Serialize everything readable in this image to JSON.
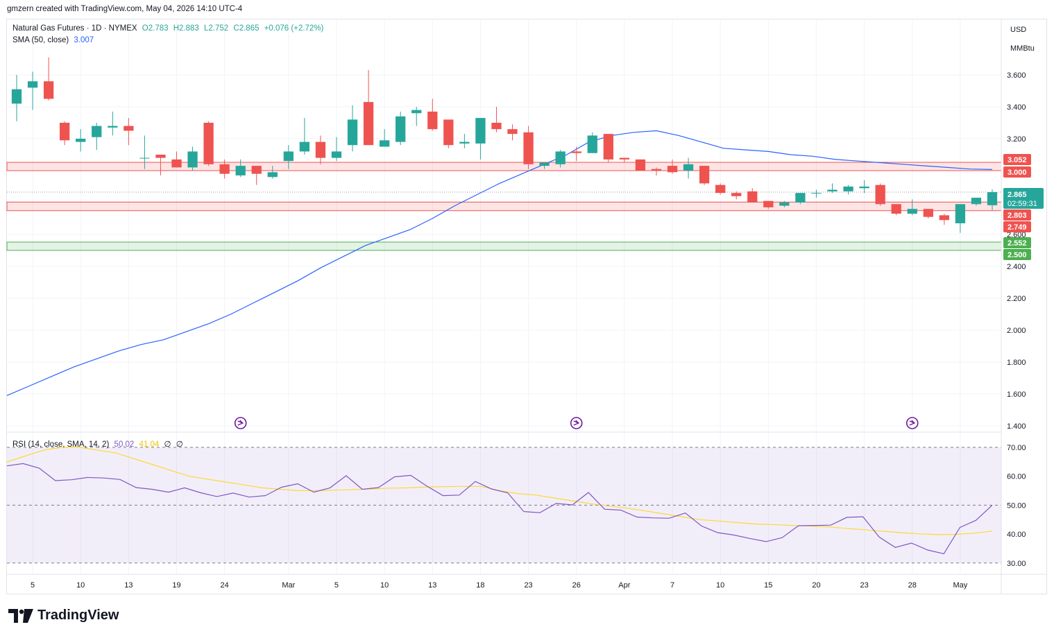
{
  "credit": "gmzern created with TradingView.com, May 04, 2026 14:10 UTC-4",
  "legend": {
    "symbol": "Natural Gas Futures · 1D · NYMEX",
    "open": "O2.783",
    "high": "H2.883",
    "low": "L2.752",
    "close": "C2.865",
    "change": "+0.076 (+2.72%)",
    "sma_label": "SMA (50, close)",
    "sma_value": "3.007",
    "rsi_label": "RSI (14, close, SMA, 14, 2)",
    "rsi_value": "50.02",
    "rsi_ma_value": "41.04",
    "rsi_extra1": "∅",
    "rsi_extra2": "∅"
  },
  "price_scale": {
    "unit": "USD",
    "unit2": "MMBtu",
    "ticks": [
      "3.600",
      "3.400",
      "3.200",
      "3.000",
      "2.800",
      "2.600",
      "2.400",
      "2.200",
      "2.000",
      "1.800",
      "1.600",
      "1.400"
    ],
    "last_price": "2.865",
    "countdown": "02:59:31"
  },
  "levels": [
    {
      "value": 3.052,
      "label": "3.052",
      "kind": "resistance"
    },
    {
      "value": 3.0,
      "label": "3.000",
      "kind": "resistance"
    },
    {
      "value": 2.803,
      "label": "2.803",
      "kind": "resistance"
    },
    {
      "value": 2.749,
      "label": "2.749",
      "kind": "resistance"
    },
    {
      "value": 2.552,
      "label": "2.552",
      "kind": "support"
    },
    {
      "value": 2.5,
      "label": "2.500",
      "kind": "support"
    }
  ],
  "rsi_scale": {
    "ticks": [
      "70.00",
      "60.00",
      "50.00",
      "40.00",
      "30.00"
    ]
  },
  "time_axis": [
    "5",
    "10",
    "13",
    "19",
    "24",
    "Mar",
    "5",
    "10",
    "13",
    "18",
    "23",
    "26",
    "Apr",
    "7",
    "10",
    "15",
    "20",
    "23",
    "28",
    "May"
  ],
  "colors": {
    "up": "#26a69a",
    "down": "#ef5350",
    "sma": "#2962ff",
    "rsi": "#7e57c2",
    "rsi_ma": "#fdd835",
    "support": "#4caf50"
  },
  "chart_data": {
    "type": "candlestick",
    "title": "Natural Gas Futures · 1D · NYMEX",
    "ylim": [
      1.4,
      3.75
    ],
    "candles": [
      {
        "o": 3.42,
        "h": 3.6,
        "l": 3.31,
        "c": 3.51
      },
      {
        "o": 3.52,
        "h": 3.62,
        "l": 3.38,
        "c": 3.56
      },
      {
        "o": 3.56,
        "h": 3.71,
        "l": 3.44,
        "c": 3.45
      },
      {
        "o": 3.3,
        "h": 3.31,
        "l": 3.16,
        "c": 3.19
      },
      {
        "o": 3.18,
        "h": 3.26,
        "l": 3.12,
        "c": 3.2
      },
      {
        "o": 3.21,
        "h": 3.3,
        "l": 3.13,
        "c": 3.28
      },
      {
        "o": 3.27,
        "h": 3.37,
        "l": 3.22,
        "c": 3.28
      },
      {
        "o": 3.28,
        "h": 3.33,
        "l": 3.16,
        "c": 3.25
      },
      {
        "o": 3.08,
        "h": 3.22,
        "l": 3.01,
        "c": 3.08
      },
      {
        "o": 3.1,
        "h": 3.1,
        "l": 2.97,
        "c": 3.08
      },
      {
        "o": 3.07,
        "h": 3.12,
        "l": 3.02,
        "c": 3.02
      },
      {
        "o": 3.02,
        "h": 3.15,
        "l": 3.0,
        "c": 3.12
      },
      {
        "o": 3.3,
        "h": 3.31,
        "l": 3.03,
        "c": 3.04
      },
      {
        "o": 3.04,
        "h": 3.07,
        "l": 2.95,
        "c": 2.98
      },
      {
        "o": 2.97,
        "h": 3.07,
        "l": 2.96,
        "c": 3.03
      },
      {
        "o": 3.03,
        "h": 3.03,
        "l": 2.91,
        "c": 2.98
      },
      {
        "o": 2.96,
        "h": 3.03,
        "l": 2.95,
        "c": 2.99
      },
      {
        "o": 3.06,
        "h": 3.16,
        "l": 3.01,
        "c": 3.12
      },
      {
        "o": 3.12,
        "h": 3.33,
        "l": 3.1,
        "c": 3.18
      },
      {
        "o": 3.18,
        "h": 3.22,
        "l": 3.04,
        "c": 3.08
      },
      {
        "o": 3.08,
        "h": 3.21,
        "l": 3.06,
        "c": 3.12
      },
      {
        "o": 3.16,
        "h": 3.41,
        "l": 3.12,
        "c": 3.32
      },
      {
        "o": 3.43,
        "h": 3.63,
        "l": 3.16,
        "c": 3.16
      },
      {
        "o": 3.15,
        "h": 3.26,
        "l": 3.15,
        "c": 3.19
      },
      {
        "o": 3.18,
        "h": 3.37,
        "l": 3.16,
        "c": 3.34
      },
      {
        "o": 3.36,
        "h": 3.4,
        "l": 3.28,
        "c": 3.38
      },
      {
        "o": 3.37,
        "h": 3.45,
        "l": 3.25,
        "c": 3.26
      },
      {
        "o": 3.32,
        "h": 3.32,
        "l": 3.14,
        "c": 3.16
      },
      {
        "o": 3.17,
        "h": 3.23,
        "l": 3.14,
        "c": 3.18
      },
      {
        "o": 3.17,
        "h": 3.33,
        "l": 3.07,
        "c": 3.33
      },
      {
        "o": 3.3,
        "h": 3.4,
        "l": 3.24,
        "c": 3.26
      },
      {
        "o": 3.26,
        "h": 3.29,
        "l": 3.19,
        "c": 3.23
      },
      {
        "o": 3.24,
        "h": 3.28,
        "l": 3.01,
        "c": 3.04
      },
      {
        "o": 3.03,
        "h": 3.05,
        "l": 3.01,
        "c": 3.05
      },
      {
        "o": 3.04,
        "h": 3.13,
        "l": 3.02,
        "c": 3.12
      },
      {
        "o": 3.12,
        "h": 3.15,
        "l": 3.06,
        "c": 3.11
      },
      {
        "o": 3.11,
        "h": 3.24,
        "l": 3.11,
        "c": 3.22
      },
      {
        "o": 3.23,
        "h": 3.23,
        "l": 3.05,
        "c": 3.07
      },
      {
        "o": 3.08,
        "h": 3.08,
        "l": 3.05,
        "c": 3.07
      },
      {
        "o": 3.07,
        "h": 3.07,
        "l": 3.0,
        "c": 3.0
      },
      {
        "o": 3.01,
        "h": 3.02,
        "l": 2.97,
        "c": 3.0
      },
      {
        "o": 3.03,
        "h": 3.07,
        "l": 2.98,
        "c": 2.99
      },
      {
        "o": 3.0,
        "h": 3.08,
        "l": 2.95,
        "c": 3.04
      },
      {
        "o": 3.03,
        "h": 3.03,
        "l": 2.91,
        "c": 2.92
      },
      {
        "o": 2.91,
        "h": 2.92,
        "l": 2.85,
        "c": 2.86
      },
      {
        "o": 2.86,
        "h": 2.87,
        "l": 2.82,
        "c": 2.84
      },
      {
        "o": 2.87,
        "h": 2.89,
        "l": 2.8,
        "c": 2.8
      },
      {
        "o": 2.81,
        "h": 2.81,
        "l": 2.76,
        "c": 2.77
      },
      {
        "o": 2.78,
        "h": 2.81,
        "l": 2.77,
        "c": 2.8
      },
      {
        "o": 2.8,
        "h": 2.86,
        "l": 2.79,
        "c": 2.86
      },
      {
        "o": 2.86,
        "h": 2.88,
        "l": 2.83,
        "c": 2.86
      },
      {
        "o": 2.87,
        "h": 2.92,
        "l": 2.86,
        "c": 2.88
      },
      {
        "o": 2.87,
        "h": 2.91,
        "l": 2.85,
        "c": 2.9
      },
      {
        "o": 2.89,
        "h": 2.94,
        "l": 2.86,
        "c": 2.9
      },
      {
        "o": 2.91,
        "h": 2.92,
        "l": 2.78,
        "c": 2.79
      },
      {
        "o": 2.79,
        "h": 2.79,
        "l": 2.72,
        "c": 2.73
      },
      {
        "o": 2.73,
        "h": 2.82,
        "l": 2.72,
        "c": 2.76
      },
      {
        "o": 2.76,
        "h": 2.76,
        "l": 2.7,
        "c": 2.71
      },
      {
        "o": 2.72,
        "h": 2.73,
        "l": 2.66,
        "c": 2.69
      },
      {
        "o": 2.67,
        "h": 2.79,
        "l": 2.61,
        "c": 2.79
      },
      {
        "o": 2.79,
        "h": 2.83,
        "l": 2.78,
        "c": 2.83
      },
      {
        "o": 2.783,
        "h": 2.883,
        "l": 2.752,
        "c": 2.865
      }
    ],
    "sma50": [
      1.59,
      1.65,
      1.71,
      1.77,
      1.82,
      1.87,
      1.91,
      1.94,
      1.99,
      2.04,
      2.1,
      2.17,
      2.24,
      2.31,
      2.39,
      2.46,
      2.53,
      2.58,
      2.63,
      2.7,
      2.78,
      2.85,
      2.92,
      2.98,
      3.04,
      3.1,
      3.18,
      3.22,
      3.24,
      3.25,
      3.22,
      3.18,
      3.14,
      3.13,
      3.12,
      3.1,
      3.09,
      3.07,
      3.06,
      3.05,
      3.04,
      3.03,
      3.02,
      3.01,
      3.007
    ],
    "rsi": [
      63.6,
      64.4,
      62.8,
      58.5,
      58.8,
      59.6,
      59.4,
      58.9,
      56.1,
      55.5,
      54.5,
      56.0,
      54.3,
      53.0,
      54.2,
      52.8,
      53.3,
      56.2,
      57.4,
      54.5,
      56.0,
      60.2,
      55.5,
      56.1,
      59.8,
      60.3,
      56.6,
      53.3,
      53.5,
      58.2,
      55.6,
      54.3,
      47.8,
      47.4,
      50.6,
      50.1,
      54.4,
      48.6,
      48.3,
      45.9,
      45.6,
      45.5,
      47.3,
      42.8,
      40.5,
      39.7,
      38.5,
      37.4,
      38.8,
      42.9,
      43.0,
      43.1,
      45.8,
      46.0,
      39.0,
      35.4,
      36.9,
      34.5,
      33.2,
      42.3,
      44.8,
      50.02
    ],
    "rsi_ma": [
      65,
      67,
      69,
      70,
      70,
      69,
      68,
      66,
      64,
      62,
      60,
      59,
      58,
      57,
      56,
      55.5,
      55,
      55,
      55.2,
      55.4,
      55.6,
      55.9,
      56,
      56.3,
      56.4,
      56.5,
      56.5,
      55,
      54,
      53.5,
      52.5,
      51.5,
      50.5,
      49.7,
      49,
      48,
      47,
      46,
      45,
      44.5,
      44,
      43.5,
      43.3,
      43,
      42.8,
      42.5,
      42,
      41.5,
      41,
      40.5,
      40.1,
      39.8,
      39.9,
      40.3,
      41.04
    ],
    "rsi_ylim": [
      26,
      74
    ]
  }
}
